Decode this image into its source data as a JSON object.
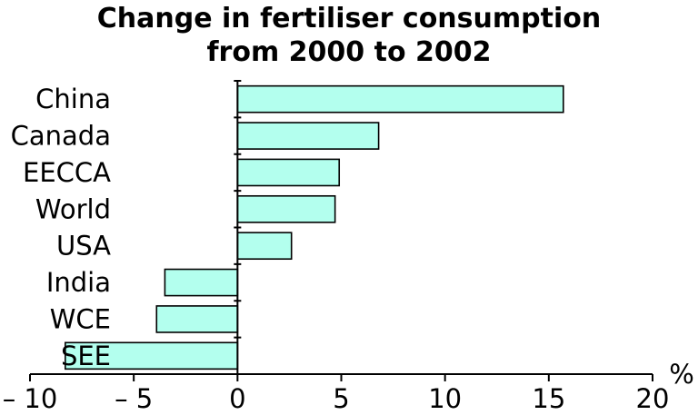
{
  "chart_data": {
    "type": "bar",
    "orientation": "horizontal",
    "title_lines": [
      "Change in fertiliser consumption",
      "from 2000 to 2002"
    ],
    "categories": [
      "China",
      "Canada",
      "EECCA",
      "World",
      "USA",
      "India",
      "WCE",
      "SEE"
    ],
    "values": [
      15.7,
      6.8,
      4.9,
      4.7,
      2.6,
      -3.5,
      -3.9,
      -8.3
    ],
    "xlim": [
      -10,
      20
    ],
    "xticks": [
      -10,
      -5,
      0,
      5,
      10,
      15,
      20
    ],
    "xtick_labels": [
      "– 10",
      "– 5",
      "0",
      "5",
      "10",
      "15",
      "20"
    ],
    "unit_label": "%",
    "bar_color": "#b3ffee",
    "bar_edge_color": "#000000",
    "grid": false,
    "legend": "none"
  }
}
